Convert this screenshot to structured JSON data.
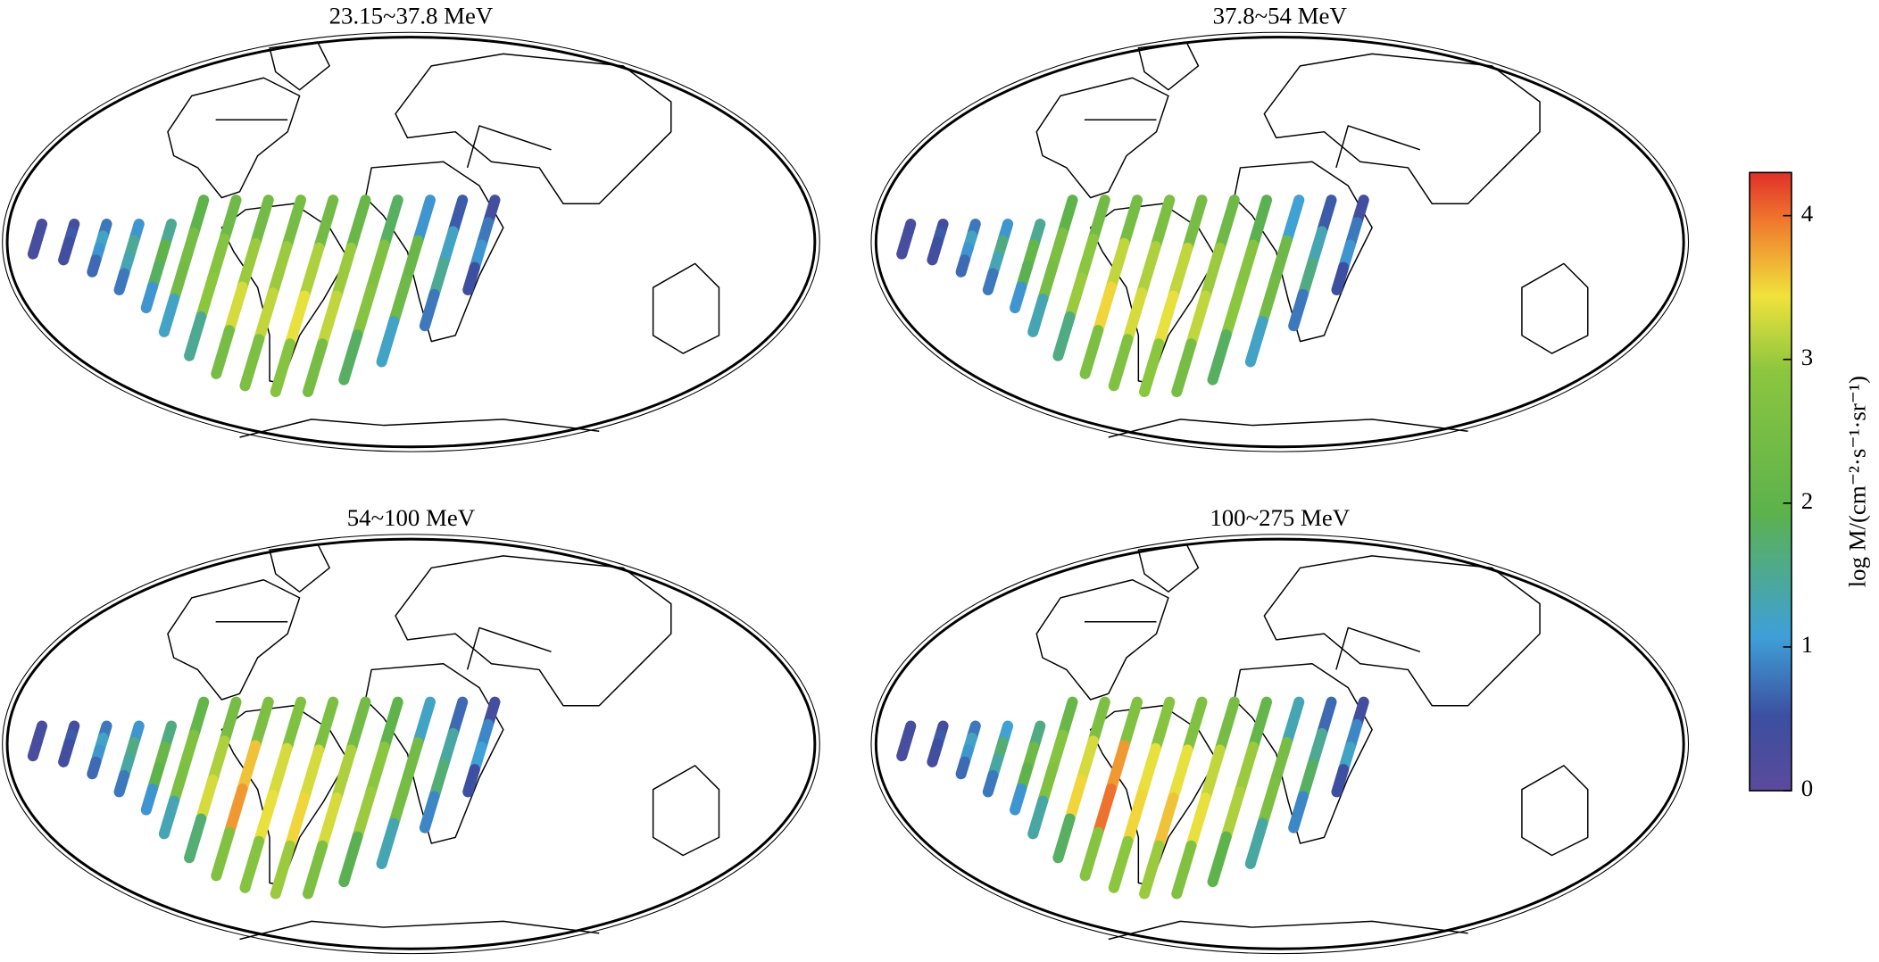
{
  "panels": [
    {
      "title": "23.15~37.8 MeV",
      "tracks": [
        [
          0.3,
          0.4,
          0.3,
          0.3
        ],
        [
          0.4,
          0.6,
          0.5,
          0.4
        ],
        [
          0.8,
          1.2,
          1.0,
          0.7
        ],
        [
          1.0,
          1.5,
          1.3,
          0.8
        ],
        [
          1.5,
          2.0,
          1.8,
          1.0
        ],
        [
          2.0,
          2.5,
          2.4,
          1.2
        ],
        [
          2.3,
          2.8,
          2.9,
          1.5
        ],
        [
          2.4,
          3.0,
          3.3,
          2.5
        ],
        [
          2.5,
          3.0,
          3.2,
          2.6
        ],
        [
          2.4,
          3.1,
          3.4,
          2.8
        ],
        [
          2.2,
          3.0,
          3.2,
          2.5
        ],
        [
          1.8,
          2.7,
          2.8,
          1.8
        ],
        [
          1.0,
          2.2,
          2.3,
          1.2
        ],
        [
          0.6,
          1.2,
          1.5,
          0.8
        ],
        [
          0.4,
          0.8,
          1.0,
          0.5
        ]
      ]
    },
    {
      "title": "37.8~54 MeV",
      "tracks": [
        [
          0.3,
          0.4,
          0.3,
          0.3
        ],
        [
          0.4,
          0.6,
          0.5,
          0.4
        ],
        [
          0.8,
          1.2,
          1.0,
          0.7
        ],
        [
          1.0,
          1.6,
          1.3,
          0.8
        ],
        [
          1.5,
          2.1,
          1.9,
          1.0
        ],
        [
          2.0,
          2.6,
          2.5,
          1.3
        ],
        [
          2.4,
          2.9,
          3.0,
          1.6
        ],
        [
          2.5,
          3.2,
          3.5,
          2.6
        ],
        [
          2.6,
          3.1,
          3.3,
          2.7
        ],
        [
          2.5,
          3.2,
          3.4,
          2.9
        ],
        [
          2.3,
          3.0,
          3.2,
          2.5
        ],
        [
          1.9,
          2.8,
          2.9,
          1.8
        ],
        [
          1.1,
          2.3,
          2.4,
          1.2
        ],
        [
          0.6,
          1.3,
          1.6,
          0.8
        ],
        [
          0.4,
          0.8,
          1.0,
          0.5
        ]
      ]
    },
    {
      "title": "54~100 MeV",
      "tracks": [
        [
          0.3,
          0.4,
          0.3,
          0.3
        ],
        [
          0.4,
          0.6,
          0.5,
          0.4
        ],
        [
          0.8,
          1.2,
          1.0,
          0.7
        ],
        [
          1.0,
          1.6,
          1.4,
          0.8
        ],
        [
          1.6,
          2.2,
          2.0,
          1.0
        ],
        [
          2.1,
          2.7,
          2.6,
          1.3
        ],
        [
          2.5,
          3.1,
          3.3,
          1.7
        ],
        [
          2.6,
          3.6,
          3.8,
          2.7
        ],
        [
          2.7,
          3.3,
          3.4,
          2.8
        ],
        [
          2.6,
          3.3,
          3.5,
          3.0
        ],
        [
          2.4,
          3.1,
          3.3,
          2.6
        ],
        [
          2.0,
          2.9,
          3.0,
          1.9
        ],
        [
          1.2,
          2.4,
          2.5,
          1.3
        ],
        [
          0.7,
          1.4,
          1.7,
          0.9
        ],
        [
          0.4,
          0.9,
          1.1,
          0.5
        ]
      ]
    },
    {
      "title": "100~275 MeV",
      "tracks": [
        [
          0.3,
          0.4,
          0.3,
          0.3
        ],
        [
          0.4,
          0.6,
          0.5,
          0.4
        ],
        [
          0.8,
          1.2,
          1.0,
          0.7
        ],
        [
          1.1,
          1.7,
          1.4,
          0.8
        ],
        [
          1.6,
          2.3,
          2.0,
          1.0
        ],
        [
          2.2,
          2.8,
          2.7,
          1.4
        ],
        [
          2.6,
          3.3,
          3.5,
          1.8
        ],
        [
          2.7,
          3.8,
          4.0,
          2.8
        ],
        [
          2.8,
          3.4,
          3.5,
          2.9
        ],
        [
          2.7,
          3.4,
          3.6,
          3.0
        ],
        [
          2.5,
          3.2,
          3.4,
          2.7
        ],
        [
          2.1,
          3.0,
          3.1,
          2.0
        ],
        [
          1.3,
          2.5,
          2.6,
          1.4
        ],
        [
          0.7,
          1.5,
          1.8,
          0.9
        ],
        [
          0.4,
          0.9,
          1.2,
          0.5
        ]
      ]
    }
  ],
  "colorbar": {
    "label": "log M/(cm⁻²·s⁻¹·sr⁻¹)",
    "ylim": [
      0,
      4.3
    ],
    "yticks": [
      0,
      1,
      2,
      3,
      4
    ]
  }
}
